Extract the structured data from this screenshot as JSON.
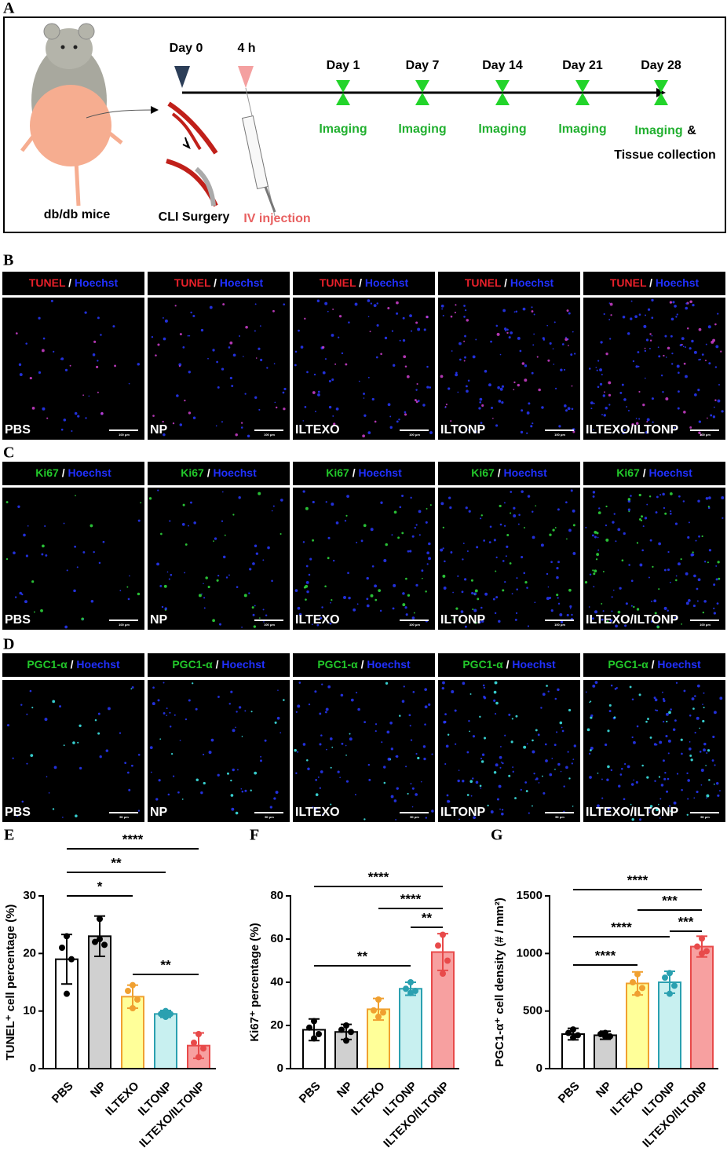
{
  "panel_a": {
    "label": "A",
    "start": "Day 0",
    "injection_time": "4 h",
    "days": [
      "Day 1",
      "Day 7",
      "Day 14",
      "Day 21",
      "Day 28"
    ],
    "imaging": [
      "Imaging",
      "Imaging",
      "Imaging",
      "Imaging",
      "Imaging"
    ],
    "amp": "&",
    "tissue": "Tissue collection",
    "mouse": "db/db mice",
    "surgery": "CLI Surgery",
    "injection": "IV injection"
  },
  "image_panels": {
    "samples": [
      "PBS",
      "NP",
      "ILTEXO",
      "ILTONP",
      "ILTEXO/ILTONP"
    ],
    "rows": [
      {
        "label": "B",
        "marker": "TUNEL",
        "marker_color": "#e8202a",
        "sep": "/",
        "stain": "Hoechst",
        "scale": "100 μm",
        "dot_color": "#d040d0"
      },
      {
        "label": "C",
        "marker": "Ki67",
        "marker_color": "#22c82a",
        "sep": "/",
        "stain": "Hoechst",
        "scale": "100 μm",
        "dot_color": "#30e040"
      },
      {
        "label": "D",
        "marker": "PGC1-α",
        "marker_color": "#22c82a",
        "sep": "/",
        "stain": "Hoechst",
        "scale": "50 μm",
        "dot_color": "#40f0f0"
      }
    ]
  },
  "chart_data": [
    {
      "type": "bar",
      "panel": "E",
      "ylabel": "TUNEL⁺ cell percentage (%)",
      "categories": [
        "PBS",
        "NP",
        "ILTEXO",
        "ILTONP",
        "ILTEXO/ILTONP"
      ],
      "values": [
        19,
        23,
        12.5,
        9.5,
        4
      ],
      "errors": [
        4.3,
        3.5,
        2,
        0.6,
        2.2
      ],
      "points": [
        [
          23,
          21,
          19,
          13
        ],
        [
          26,
          22,
          21.5,
          22.5
        ],
        [
          14.5,
          13.5,
          12,
          10.5
        ],
        [
          10,
          9.5,
          9.5,
          9
        ],
        [
          6,
          4.5,
          3.5,
          2
        ]
      ],
      "colors": [
        "#ffffff",
        "#d0d0d0",
        "#ffff99",
        "#c8f0f0",
        "#f7a0a0"
      ],
      "edge_colors": [
        "#000000",
        "#000000",
        "#f0a030",
        "#2aa0b0",
        "#e84a4a"
      ],
      "ylim": [
        0,
        30
      ],
      "yticks": [
        0,
        10,
        20,
        30
      ],
      "significance": [
        {
          "from": 0,
          "to": 4,
          "label": "****"
        },
        {
          "from": 0,
          "to": 3,
          "label": "**"
        },
        {
          "from": 0,
          "to": 2,
          "label": "*"
        },
        {
          "from": 2,
          "to": 4,
          "label": "**"
        }
      ]
    },
    {
      "type": "bar",
      "panel": "F",
      "ylabel": "Ki67⁺ percentage (%)",
      "categories": [
        "PBS",
        "NP",
        "ILTEXO",
        "ILTONP",
        "ILTEXO/ILTONP"
      ],
      "values": [
        18,
        17,
        27.5,
        37,
        54
      ],
      "errors": [
        5,
        3.5,
        5,
        3,
        8.5
      ],
      "points": [
        [
          22,
          19,
          16,
          14
        ],
        [
          20,
          18,
          17,
          13
        ],
        [
          32,
          27,
          26,
          24
        ],
        [
          40,
          37,
          36,
          35
        ],
        [
          62,
          57,
          50,
          44
        ]
      ],
      "colors": [
        "#ffffff",
        "#d0d0d0",
        "#ffff99",
        "#c8f0f0",
        "#f7a0a0"
      ],
      "edge_colors": [
        "#000000",
        "#000000",
        "#f0a030",
        "#2aa0b0",
        "#e84a4a"
      ],
      "ylim": [
        0,
        80
      ],
      "yticks": [
        0,
        20,
        40,
        60,
        80
      ],
      "significance": [
        {
          "from": 0,
          "to": 4,
          "label": "****"
        },
        {
          "from": 2,
          "to": 4,
          "label": "****"
        },
        {
          "from": 3,
          "to": 4,
          "label": "**"
        },
        {
          "from": 0,
          "to": 3,
          "label": "**"
        }
      ]
    },
    {
      "type": "bar",
      "panel": "G",
      "ylabel": "PGC1-α⁺ cell density (# / mm²)",
      "categories": [
        "PBS",
        "NP",
        "ILTEXO",
        "ILTONP",
        "ILTEXO/ILTONP"
      ],
      "values": [
        300,
        290,
        740,
        750,
        1060
      ],
      "errors": [
        50,
        35,
        100,
        95,
        90
      ],
      "points": [
        [
          340,
          310,
          290,
          270
        ],
        [
          310,
          300,
          280,
          280
        ],
        [
          820,
          750,
          700,
          650
        ],
        [
          830,
          790,
          720,
          650
        ],
        [
          1130,
          1060,
          1020,
          1000
        ]
      ],
      "colors": [
        "#ffffff",
        "#d0d0d0",
        "#ffff99",
        "#c8f0f0",
        "#f7a0a0"
      ],
      "edge_colors": [
        "#000000",
        "#000000",
        "#f0a030",
        "#2aa0b0",
        "#e84a4a"
      ],
      "ylim": [
        0,
        1500
      ],
      "yticks": [
        0,
        500,
        1000,
        1500
      ],
      "significance": [
        {
          "from": 0,
          "to": 4,
          "label": "****"
        },
        {
          "from": 2,
          "to": 4,
          "label": "***"
        },
        {
          "from": 3,
          "to": 4,
          "label": "***"
        },
        {
          "from": 0,
          "to": 3,
          "label": "****"
        },
        {
          "from": 0,
          "to": 2,
          "label": "****"
        }
      ]
    }
  ]
}
